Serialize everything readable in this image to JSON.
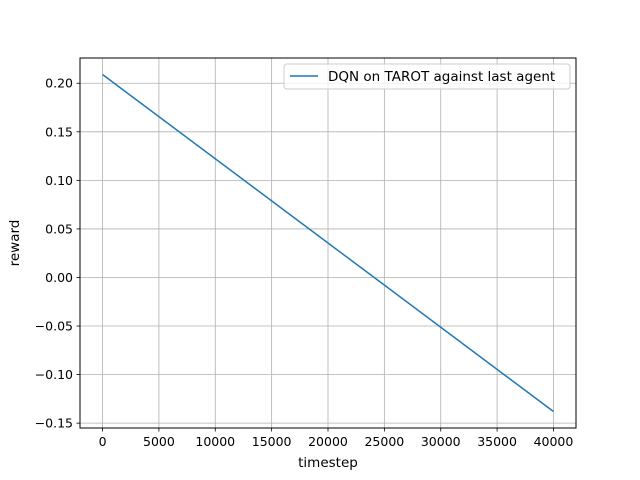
{
  "chart_data": {
    "type": "line",
    "title": "",
    "xlabel": "timestep",
    "ylabel": "reward",
    "xlim": [
      -2000,
      42000
    ],
    "ylim": [
      -0.155,
      0.226
    ],
    "xticks": [
      0,
      5000,
      10000,
      15000,
      20000,
      25000,
      30000,
      35000,
      40000
    ],
    "xtick_labels": [
      "0",
      "5000",
      "10000",
      "15000",
      "20000",
      "25000",
      "30000",
      "35000",
      "40000"
    ],
    "yticks": [
      -0.15,
      -0.1,
      -0.05,
      0.0,
      0.05,
      0.1,
      0.15,
      0.2
    ],
    "ytick_labels": [
      "−0.15",
      "−0.10",
      "−0.05",
      "0.00",
      "0.05",
      "0.10",
      "0.15",
      "0.20"
    ],
    "grid": true,
    "legend_position": "top-right",
    "series": [
      {
        "name": "DQN on TAROT against last agent",
        "color": "#1f77b4",
        "x": [
          0,
          40000
        ],
        "y": [
          0.209,
          -0.138
        ]
      }
    ]
  }
}
